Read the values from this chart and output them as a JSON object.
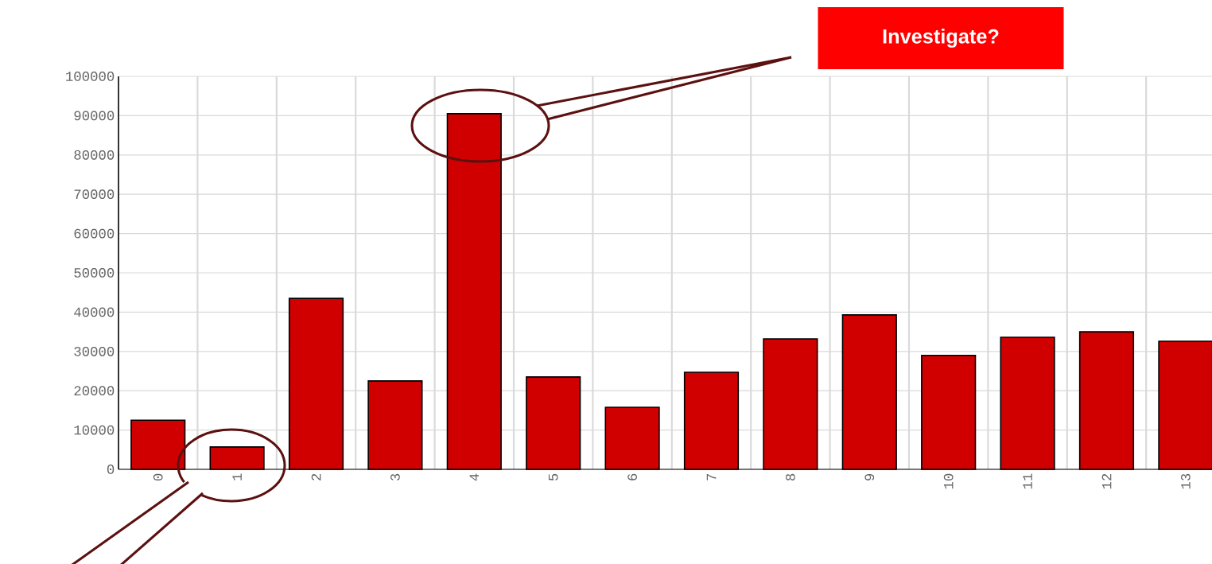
{
  "chart_data": {
    "type": "bar",
    "categories": [
      "0",
      "1",
      "2",
      "3",
      "4",
      "5",
      "6",
      "7",
      "8",
      "9",
      "10",
      "11",
      "12",
      "13"
    ],
    "values": [
      12500,
      5700,
      43500,
      22500,
      90500,
      23500,
      15800,
      24700,
      33200,
      39300,
      29000,
      33600,
      35000,
      32600
    ],
    "color": "#d00000",
    "ylim": [
      0,
      100000
    ],
    "yticks": [
      0,
      10000,
      20000,
      30000,
      40000,
      50000,
      60000,
      70000,
      80000,
      90000,
      100000
    ],
    "grid": true,
    "annotations": [
      "Investigate?"
    ]
  }
}
